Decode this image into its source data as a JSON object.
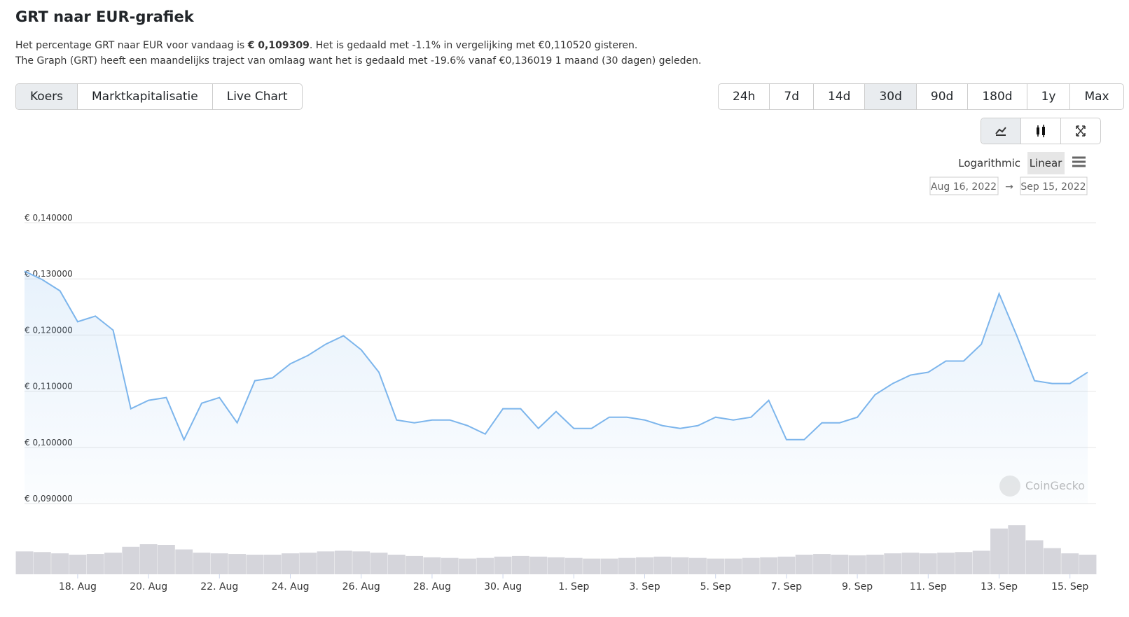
{
  "header": {
    "title": "GRT naar EUR-grafiek",
    "line1": [
      "Het percentage GRT naar EUR voor vandaag is ",
      "€ 0,109309",
      ". Het is gedaald met -1.1% in vergelijking met €0,110520 gisteren."
    ],
    "line2": "The Graph (GRT) heeft een maandelijks traject van omlaag want het is gedaald met -19.6% vanaf €0,136019 1 maand (30 dagen) geleden."
  },
  "tabs": [
    "Koers",
    "Marktkapitalisatie",
    "Live Chart"
  ],
  "periods": [
    "24h",
    "7d",
    "14d",
    "30d",
    "90d",
    "180d",
    "1y",
    "Max"
  ],
  "scale_options": [
    "Logarithmic",
    "Linear"
  ],
  "date_range": [
    "Aug 16, 2022",
    "Sep 15, 2022"
  ],
  "watermark": "CoinGecko",
  "chart_data": {
    "type": "area",
    "color": "#7cb5ec",
    "grid": true,
    "x": [
      0.5,
      1,
      1.5,
      2,
      2.5,
      3,
      3.5,
      4,
      4.5,
      5,
      5.5,
      6,
      6.5,
      7,
      7.5,
      8,
      8.5,
      9,
      9.5,
      10,
      10.5,
      11,
      11.5,
      12,
      12.5,
      13,
      13.5,
      14,
      14.5,
      15,
      15.5,
      16,
      16.5,
      17,
      17.5,
      18,
      18.5,
      19,
      19.5,
      20,
      20.5,
      21,
      21.5,
      22,
      22.5,
      23,
      23.5,
      24,
      24.5,
      25,
      25.5,
      26,
      26.5,
      27,
      27.5,
      28,
      28.5,
      29,
      29.5,
      30,
      30.5
    ],
    "series": [
      {
        "values": [
          0.1305,
          0.129,
          0.127,
          0.1215,
          0.1225,
          0.12,
          0.106,
          0.1075,
          0.108,
          0.1005,
          0.107,
          0.108,
          0.1035,
          0.111,
          0.1115,
          0.114,
          0.1155,
          0.1175,
          0.119,
          0.1165,
          0.1125,
          0.104,
          0.1035,
          0.104,
          0.104,
          0.103,
          0.1015,
          0.106,
          0.106,
          0.1025,
          0.1055,
          0.1025,
          0.1025,
          0.1045,
          0.1045,
          0.104,
          0.103,
          0.1025,
          0.103,
          0.1045,
          0.104,
          0.1045,
          0.1075,
          0.1005,
          0.1005,
          0.1035,
          0.1035,
          0.1045,
          0.1085,
          0.1105,
          0.112,
          0.1125,
          0.1145,
          0.1145,
          0.1175,
          0.1265,
          0.119,
          0.111,
          0.1105,
          0.1105,
          0.1125
        ]
      }
    ],
    "volume_values": [
      35,
      34,
      32,
      30,
      31,
      33,
      42,
      46,
      45,
      38,
      33,
      32,
      31,
      30,
      30,
      32,
      33,
      35,
      36,
      35,
      33,
      30,
      28,
      26,
      25,
      24,
      25,
      27,
      28,
      27,
      26,
      25,
      24,
      24,
      25,
      26,
      27,
      26,
      25,
      24,
      24,
      25,
      26,
      27,
      30,
      31,
      30,
      29,
      30,
      32,
      33,
      32,
      33,
      34,
      36,
      70,
      75,
      52,
      40,
      32,
      30
    ],
    "xlim": [
      0.5,
      30.5
    ],
    "xticks": [
      {
        "value": 2,
        "label": "18. Aug"
      },
      {
        "value": 4,
        "label": "20. Aug"
      },
      {
        "value": 6,
        "label": "22. Aug"
      },
      {
        "value": 8,
        "label": "24. Aug"
      },
      {
        "value": 10,
        "label": "26. Aug"
      },
      {
        "value": 12,
        "label": "28. Aug"
      },
      {
        "value": 14,
        "label": "30. Aug"
      },
      {
        "value": 16,
        "label": "1. Sep"
      },
      {
        "value": 18,
        "label": "3. Sep"
      },
      {
        "value": 20,
        "label": "5. Sep"
      },
      {
        "value": 22,
        "label": "7. Sep"
      },
      {
        "value": 24,
        "label": "9. Sep"
      },
      {
        "value": 26,
        "label": "11. Sep"
      },
      {
        "value": 28,
        "label": "13. Sep"
      },
      {
        "value": 30,
        "label": "15. Sep"
      }
    ],
    "ylim": [
      0.09,
      0.14
    ],
    "yticks": [
      {
        "value": 0.14,
        "label": "€ 0,140000"
      },
      {
        "value": 0.13,
        "label": "€ 0,130000"
      },
      {
        "value": 0.12,
        "label": "€ 0,120000"
      },
      {
        "value": 0.11,
        "label": "€ 0,110000"
      },
      {
        "value": 0.1,
        "label": "€ 0,100000"
      },
      {
        "value": 0.09,
        "label": "€ 0,090000"
      }
    ]
  }
}
